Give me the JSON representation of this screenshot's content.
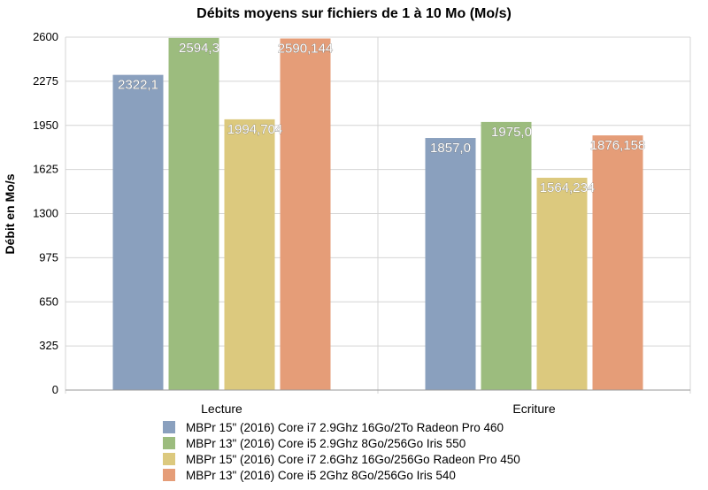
{
  "chart_data": {
    "type": "bar",
    "title": "Débits moyens sur fichiers de 1 à 10 Mo (Mo/s)",
    "ylabel": "Débit en Mo/s",
    "xlabel": "",
    "ylim": [
      0,
      2600
    ],
    "yticks": [
      "0",
      "325",
      "650",
      "975",
      "1300",
      "1625",
      "1950",
      "2275",
      "2600"
    ],
    "categories": [
      "Lecture",
      "Ecriture"
    ],
    "grid": true,
    "legend_position": "bottom",
    "series": [
      {
        "name": "MBPr 15\" (2016) Core i7 2.9Ghz 16Go/2To Radeon Pro 460",
        "color": "#8aa0be",
        "values": [
          2322.1,
          1857.0
        ],
        "labels": [
          "2322,1",
          "1857,0"
        ]
      },
      {
        "name": "MBPr 13\" (2016) Core i5 2.9Ghz 8Go/256Go Iris 550",
        "color": "#9cbc7e",
        "values": [
          2594.3,
          1975.0
        ],
        "labels": [
          "2594,3",
          "1975,0"
        ]
      },
      {
        "name": "MBPr 15\" (2016) Core i7 2.6Ghz 16Go/256Go Radeon Pro 450",
        "color": "#dcc97e",
        "values": [
          1994.704,
          1564.234
        ],
        "labels": [
          "1994,704",
          "1564,234"
        ]
      },
      {
        "name": "MBPr 13\" (2016) Core i5 2Ghz 8Go/256Go Iris 540",
        "color": "#e59d78",
        "values": [
          2590.144,
          1876.158
        ],
        "labels": [
          "2590,144",
          "1876,158"
        ]
      }
    ]
  }
}
